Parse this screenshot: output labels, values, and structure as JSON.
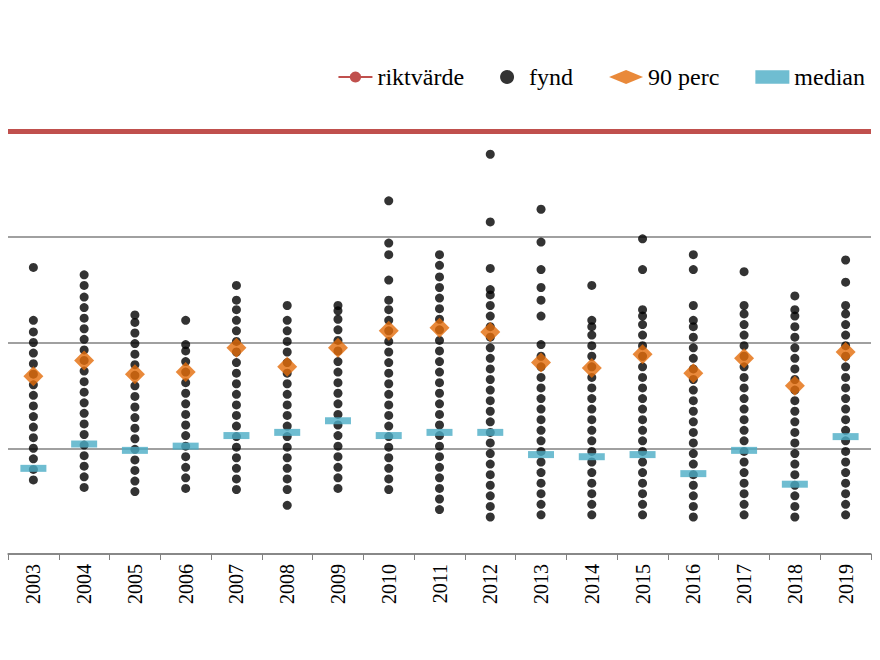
{
  "chart_data": {
    "type": "strip",
    "categories": [
      "2003",
      "2004",
      "2005",
      "2006",
      "2007",
      "2008",
      "2009",
      "2010",
      "2011",
      "2012",
      "2013",
      "2014",
      "2015",
      "2016",
      "2017",
      "2018",
      "2019"
    ],
    "ylim": [
      0,
      4
    ],
    "yticks": [
      0,
      1,
      2,
      3,
      4
    ],
    "grid": true,
    "tick_labels": "x",
    "legend": "top-right",
    "series": [
      {
        "name": "riktvärde",
        "type": "hline",
        "color": "#c0504d",
        "line_style": "solid",
        "value": 4
      },
      {
        "name": "fynd",
        "type": "strip",
        "color": "#000000",
        "marker": "circle",
        "values": [
          [
            0.7,
            0.8,
            0.9,
            1.0,
            1.1,
            1.2,
            1.3,
            1.4,
            1.5,
            1.6,
            1.7,
            1.8,
            1.9,
            2.0,
            2.1,
            2.21,
            2.71
          ],
          [
            0.63,
            0.73,
            0.83,
            0.93,
            1.03,
            1.13,
            1.23,
            1.33,
            1.43,
            1.53,
            1.63,
            1.73,
            1.83,
            1.93,
            2.03,
            2.13,
            2.23,
            2.33,
            2.43,
            2.54,
            2.64
          ],
          [
            0.59,
            0.69,
            0.79,
            0.89,
            0.99,
            1.09,
            1.19,
            1.29,
            1.39,
            1.49,
            1.59,
            1.69,
            1.79,
            1.89,
            1.99,
            2.09,
            2.19,
            2.26
          ],
          [
            0.62,
            0.72,
            0.82,
            0.92,
            1.02,
            1.12,
            1.22,
            1.32,
            1.42,
            1.52,
            1.62,
            1.72,
            1.82,
            1.92,
            1.98,
            2.21
          ],
          [
            0.61,
            0.71,
            0.81,
            0.91,
            1.01,
            1.11,
            1.21,
            1.31,
            1.41,
            1.51,
            1.61,
            1.71,
            1.81,
            1.91,
            2.01,
            2.11,
            2.21,
            2.31,
            2.4,
            2.54
          ],
          [
            0.46,
            0.61,
            0.71,
            0.81,
            0.91,
            1.01,
            1.11,
            1.21,
            1.31,
            1.41,
            1.51,
            1.61,
            1.71,
            1.81,
            1.91,
            2.01,
            2.11,
            2.21,
            2.35
          ],
          [
            0.62,
            0.72,
            0.82,
            0.92,
            1.02,
            1.12,
            1.22,
            1.32,
            1.42,
            1.52,
            1.62,
            1.72,
            1.82,
            1.92,
            2.02,
            2.12,
            2.22,
            2.3,
            2.35
          ],
          [
            0.61,
            0.71,
            0.81,
            0.91,
            1.01,
            1.11,
            1.21,
            1.31,
            1.41,
            1.51,
            1.61,
            1.71,
            1.81,
            1.91,
            2.01,
            2.11,
            2.21,
            2.31,
            2.4,
            2.59,
            2.83,
            2.94,
            3.34
          ],
          [
            0.42,
            0.52,
            0.62,
            0.72,
            0.82,
            0.92,
            1.02,
            1.12,
            1.22,
            1.32,
            1.42,
            1.52,
            1.62,
            1.72,
            1.82,
            1.92,
            2.02,
            2.12,
            2.22,
            2.32,
            2.42,
            2.52,
            2.62,
            2.73,
            2.83
          ],
          [
            0.35,
            0.45,
            0.55,
            0.65,
            0.75,
            0.85,
            0.95,
            1.05,
            1.15,
            1.25,
            1.35,
            1.45,
            1.55,
            1.65,
            1.75,
            1.85,
            1.95,
            2.05,
            2.15,
            2.25,
            2.35,
            2.45,
            2.5,
            2.7,
            3.14,
            3.78
          ],
          [
            0.37,
            0.47,
            0.57,
            0.67,
            0.77,
            0.87,
            0.97,
            1.07,
            1.17,
            1.27,
            1.37,
            1.47,
            1.57,
            1.67,
            1.77,
            1.87,
            1.98,
            2.25,
            2.4,
            2.52,
            2.69,
            2.95,
            3.26
          ],
          [
            0.37,
            0.47,
            0.57,
            0.67,
            0.77,
            0.87,
            0.97,
            1.07,
            1.17,
            1.27,
            1.37,
            1.47,
            1.57,
            1.67,
            1.77,
            1.87,
            1.97,
            2.07,
            2.15,
            2.21,
            2.54
          ],
          [
            0.37,
            0.47,
            0.57,
            0.67,
            0.77,
            0.87,
            0.97,
            1.07,
            1.17,
            1.27,
            1.37,
            1.47,
            1.57,
            1.67,
            1.77,
            1.87,
            1.97,
            2.07,
            2.17,
            2.25,
            2.31,
            2.69,
            2.98
          ],
          [
            0.35,
            0.45,
            0.55,
            0.65,
            0.75,
            0.85,
            0.95,
            1.05,
            1.15,
            1.25,
            1.35,
            1.45,
            1.55,
            1.65,
            1.75,
            1.85,
            1.95,
            2.05,
            2.15,
            2.21,
            2.35,
            2.69,
            2.83
          ],
          [
            0.37,
            0.47,
            0.57,
            0.67,
            0.77,
            0.87,
            0.97,
            1.07,
            1.17,
            1.27,
            1.37,
            1.47,
            1.57,
            1.67,
            1.77,
            1.87,
            1.97,
            2.07,
            2.17,
            2.27,
            2.35,
            2.67
          ],
          [
            0.35,
            0.45,
            0.55,
            0.65,
            0.75,
            0.85,
            0.95,
            1.05,
            1.15,
            1.25,
            1.35,
            1.45,
            1.55,
            1.65,
            1.75,
            1.85,
            1.95,
            2.05,
            2.15,
            2.25,
            2.31,
            2.44
          ],
          [
            0.37,
            0.47,
            0.57,
            0.67,
            0.77,
            0.87,
            0.97,
            1.07,
            1.17,
            1.27,
            1.37,
            1.47,
            1.57,
            1.67,
            1.77,
            1.87,
            1.97,
            2.07,
            2.17,
            2.27,
            2.35,
            2.57,
            2.78
          ]
        ]
      },
      {
        "name": "90 perc",
        "type": "scatter",
        "color": "#e36c09",
        "marker": "diamond",
        "values": [
          1.68,
          1.83,
          1.7,
          1.72,
          1.95,
          1.77,
          1.95,
          2.11,
          2.14,
          2.1,
          1.81,
          1.76,
          1.89,
          1.71,
          1.85,
          1.59,
          1.91
        ]
      },
      {
        "name": "median",
        "type": "scatter",
        "color": "#4bacc6",
        "marker": "dash",
        "values": [
          0.81,
          1.04,
          0.98,
          1.02,
          1.12,
          1.15,
          1.26,
          1.12,
          1.15,
          1.15,
          0.94,
          0.92,
          0.94,
          0.76,
          0.98,
          0.66,
          1.11
        ]
      }
    ]
  }
}
